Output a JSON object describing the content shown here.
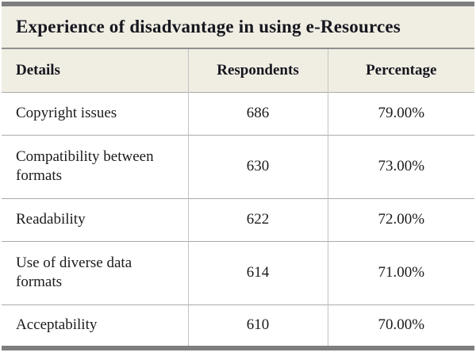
{
  "title": "Experience of disadvantage in using e-Resources",
  "table": {
    "columns": [
      "Details",
      "Respondents",
      "Percentage"
    ],
    "rows": [
      {
        "details": "Copyright issues",
        "respondents": "686",
        "percentage": "79.00%"
      },
      {
        "details": "Compatibility between formats",
        "respondents": "630",
        "percentage": "73.00%"
      },
      {
        "details": "Readability",
        "respondents": "622",
        "percentage": "72.00%"
      },
      {
        "details": "Use of diverse data formats",
        "respondents": "614",
        "percentage": "71.00%"
      },
      {
        "details": "Acceptability",
        "respondents": "610",
        "percentage": "70.00%"
      }
    ]
  },
  "chart_data": {
    "type": "table",
    "title": "Experience of disadvantage in using e-Resources",
    "categories": [
      "Copyright issues",
      "Compatibility between formats",
      "Readability",
      "Use of diverse data formats",
      "Acceptability"
    ],
    "series": [
      {
        "name": "Respondents",
        "values": [
          686,
          630,
          622,
          614,
          610
        ]
      },
      {
        "name": "Percentage",
        "values": [
          79.0,
          73.0,
          72.0,
          71.0,
          70.0
        ]
      }
    ]
  },
  "colors": {
    "band_background": "#f0eee3",
    "rule_bar": "#7e7e7e",
    "title_header_separator": "#8f8f8f",
    "row_separator": "#aaaaaa",
    "column_divider": "#c3c3c3",
    "text": "#17171f",
    "body_background": "#ffffff"
  }
}
